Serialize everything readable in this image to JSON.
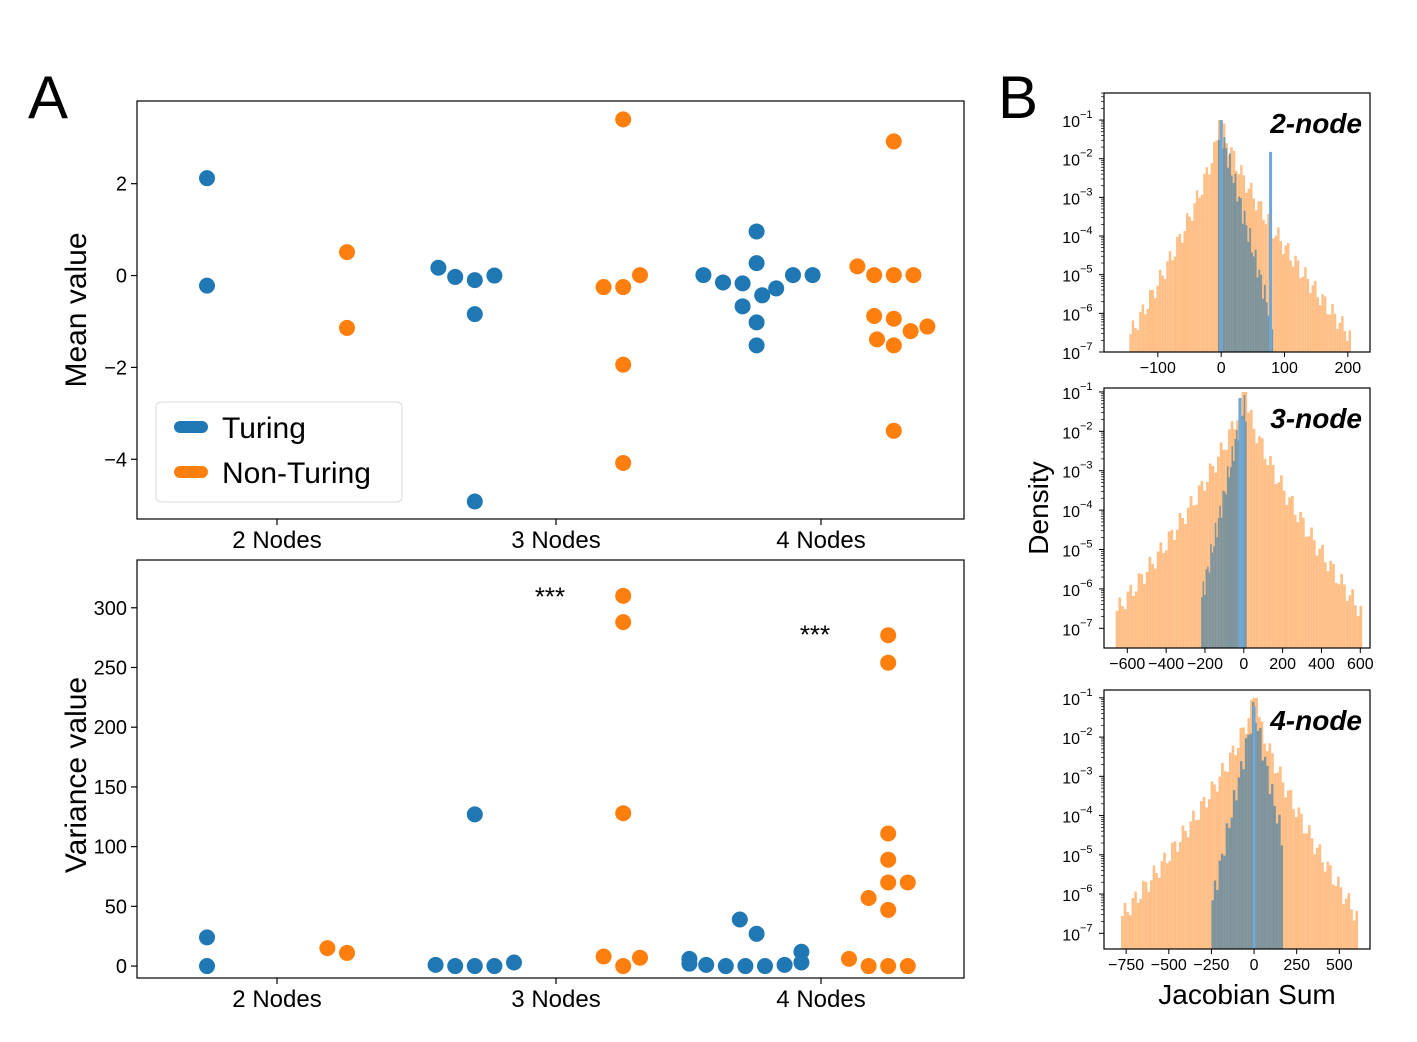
{
  "colors": {
    "turing": "#1f77b4",
    "non_turing": "#ff7f0e",
    "turing_hist": "#6fa8d6",
    "non_turing_hist": "#ffbf86",
    "overlap": "#6f8fa0"
  },
  "panel_letters": {
    "a": "A",
    "b": "B"
  },
  "chart_data": [
    {
      "type": "scatter",
      "panel": "A-top",
      "ylabel": "Mean value",
      "categories": [
        "2 Nodes",
        "3 Nodes",
        "4 Nodes"
      ],
      "ylim": [
        -5.3,
        3.8
      ],
      "yticks": [
        2,
        0,
        -2,
        -4
      ],
      "ytick_labels": [
        "2",
        "0",
        "−2",
        "−4"
      ],
      "grid": false,
      "legend": {
        "placement": "lower-left",
        "entries": [
          "Turing",
          "Non-Turing"
        ]
      },
      "series": [
        {
          "name": "Turing",
          "points": [
            {
              "cat": 0,
              "off": -0.25,
              "y": 2.12
            },
            {
              "cat": 0,
              "off": -0.25,
              "y": -0.22
            },
            {
              "cat": 1,
              "off": -0.42,
              "y": 0.17
            },
            {
              "cat": 1,
              "off": -0.36,
              "y": -0.03
            },
            {
              "cat": 1,
              "off": -0.29,
              "y": -0.1
            },
            {
              "cat": 1,
              "off": -0.22,
              "y": 0.0
            },
            {
              "cat": 1,
              "off": -0.29,
              "y": -0.84
            },
            {
              "cat": 1,
              "off": -0.29,
              "y": -4.92
            },
            {
              "cat": 2,
              "off": -0.42,
              "y": 0.01
            },
            {
              "cat": 2,
              "off": -0.35,
              "y": -0.15
            },
            {
              "cat": 2,
              "off": -0.28,
              "y": -0.17
            },
            {
              "cat": 2,
              "off": -0.23,
              "y": 0.96
            },
            {
              "cat": 2,
              "off": -0.23,
              "y": 0.27
            },
            {
              "cat": 2,
              "off": -0.21,
              "y": -0.43
            },
            {
              "cat": 2,
              "off": -0.16,
              "y": -0.28
            },
            {
              "cat": 2,
              "off": -0.1,
              "y": 0.01
            },
            {
              "cat": 2,
              "off": -0.03,
              "y": 0.01
            },
            {
              "cat": 2,
              "off": -0.28,
              "y": -0.67
            },
            {
              "cat": 2,
              "off": -0.23,
              "y": -1.02
            },
            {
              "cat": 2,
              "off": -0.23,
              "y": -1.52
            }
          ]
        },
        {
          "name": "Non-Turing",
          "points": [
            {
              "cat": 0,
              "off": 0.25,
              "y": 0.51
            },
            {
              "cat": 0,
              "off": 0.25,
              "y": -1.14
            },
            {
              "cat": 1,
              "off": 0.17,
              "y": -0.25
            },
            {
              "cat": 1,
              "off": 0.24,
              "y": -0.25
            },
            {
              "cat": 1,
              "off": 0.3,
              "y": 0.01
            },
            {
              "cat": 1,
              "off": 0.24,
              "y": 3.4
            },
            {
              "cat": 1,
              "off": 0.24,
              "y": -1.94
            },
            {
              "cat": 1,
              "off": 0.24,
              "y": -4.08
            },
            {
              "cat": 2,
              "off": 0.13,
              "y": 0.2
            },
            {
              "cat": 2,
              "off": 0.19,
              "y": 0.01
            },
            {
              "cat": 2,
              "off": 0.26,
              "y": 0.01
            },
            {
              "cat": 2,
              "off": 0.33,
              "y": 0.01
            },
            {
              "cat": 2,
              "off": 0.26,
              "y": 2.92
            },
            {
              "cat": 2,
              "off": 0.19,
              "y": -0.88
            },
            {
              "cat": 2,
              "off": 0.26,
              "y": -0.94
            },
            {
              "cat": 2,
              "off": 0.32,
              "y": -1.21
            },
            {
              "cat": 2,
              "off": 0.38,
              "y": -1.11
            },
            {
              "cat": 2,
              "off": 0.2,
              "y": -1.39
            },
            {
              "cat": 2,
              "off": 0.26,
              "y": -1.52
            },
            {
              "cat": 2,
              "off": 0.26,
              "y": -3.38
            }
          ]
        }
      ]
    },
    {
      "type": "scatter",
      "panel": "A-bottom",
      "ylabel": "Variance value",
      "categories": [
        "2 Nodes",
        "3 Nodes",
        "4 Nodes"
      ],
      "ylim": [
        -10,
        340
      ],
      "yticks": [
        300,
        250,
        200,
        150,
        100,
        50,
        0
      ],
      "ytick_labels": [
        "300",
        "250",
        "200",
        "150",
        "100",
        "50",
        "0"
      ],
      "grid": false,
      "annotations": [
        {
          "text": "***",
          "cat": 1,
          "off": 0.0,
          "y": 312
        },
        {
          "text": "***",
          "cat": 2,
          "off": 0.0,
          "y": 280
        }
      ],
      "series": [
        {
          "name": "Turing",
          "points": [
            {
              "cat": 0,
              "off": -0.25,
              "y": 24
            },
            {
              "cat": 0,
              "off": -0.25,
              "y": 0
            },
            {
              "cat": 1,
              "off": -0.43,
              "y": 1
            },
            {
              "cat": 1,
              "off": -0.36,
              "y": 0
            },
            {
              "cat": 1,
              "off": -0.29,
              "y": 0
            },
            {
              "cat": 1,
              "off": -0.22,
              "y": 0
            },
            {
              "cat": 1,
              "off": -0.15,
              "y": 3
            },
            {
              "cat": 1,
              "off": -0.29,
              "y": 127
            },
            {
              "cat": 2,
              "off": -0.47,
              "y": 6
            },
            {
              "cat": 2,
              "off": -0.47,
              "y": 2
            },
            {
              "cat": 2,
              "off": -0.41,
              "y": 1
            },
            {
              "cat": 2,
              "off": -0.34,
              "y": 0
            },
            {
              "cat": 2,
              "off": -0.27,
              "y": 0
            },
            {
              "cat": 2,
              "off": -0.2,
              "y": 0
            },
            {
              "cat": 2,
              "off": -0.13,
              "y": 1
            },
            {
              "cat": 2,
              "off": -0.07,
              "y": 3
            },
            {
              "cat": 2,
              "off": -0.07,
              "y": 12
            },
            {
              "cat": 2,
              "off": -0.29,
              "y": 39
            },
            {
              "cat": 2,
              "off": -0.23,
              "y": 27
            }
          ]
        },
        {
          "name": "Non-Turing",
          "points": [
            {
              "cat": 0,
              "off": 0.18,
              "y": 15
            },
            {
              "cat": 0,
              "off": 0.25,
              "y": 11
            },
            {
              "cat": 1,
              "off": 0.17,
              "y": 8
            },
            {
              "cat": 1,
              "off": 0.24,
              "y": 0
            },
            {
              "cat": 1,
              "off": 0.3,
              "y": 7
            },
            {
              "cat": 1,
              "off": 0.24,
              "y": 310
            },
            {
              "cat": 1,
              "off": 0.24,
              "y": 288
            },
            {
              "cat": 1,
              "off": 0.24,
              "y": 128
            },
            {
              "cat": 2,
              "off": 0.1,
              "y": 6
            },
            {
              "cat": 2,
              "off": 0.17,
              "y": 0
            },
            {
              "cat": 2,
              "off": 0.24,
              "y": 0
            },
            {
              "cat": 2,
              "off": 0.31,
              "y": 0
            },
            {
              "cat": 2,
              "off": 0.24,
              "y": 277
            },
            {
              "cat": 2,
              "off": 0.24,
              "y": 254
            },
            {
              "cat": 2,
              "off": 0.24,
              "y": 111
            },
            {
              "cat": 2,
              "off": 0.24,
              "y": 89
            },
            {
              "cat": 2,
              "off": 0.24,
              "y": 70
            },
            {
              "cat": 2,
              "off": 0.31,
              "y": 70
            },
            {
              "cat": 2,
              "off": 0.17,
              "y": 57
            },
            {
              "cat": 2,
              "off": 0.24,
              "y": 47
            }
          ]
        }
      ]
    },
    {
      "type": "bar",
      "subtype": "histogram",
      "panel": "B",
      "ylabel": "Density",
      "xlabel": "Jacobian Sum",
      "yscale": "log",
      "ytick_labels": [
        "10",
        "10",
        "10",
        "10",
        "10",
        "10",
        "10"
      ],
      "ytick_exponents": [
        "−1",
        "−2",
        "−3",
        "−4",
        "−5",
        "−6",
        "−7"
      ],
      "panels": [
        {
          "title": "2-node",
          "xlim": [
            -185,
            235
          ],
          "xticks": [
            -100,
            0,
            100,
            200
          ],
          "xtick_labels": [
            "−100",
            "0",
            "100",
            "200"
          ],
          "non_turing_extent": [
            -145,
            205
          ],
          "turing_extent": [
            -5,
            82
          ],
          "turing_spikes": [
            [
              78,
              0.015
            ],
            [
              0,
              0.1
            ]
          ],
          "ylim_log": [
            -7,
            -0.3
          ]
        },
        {
          "title": "3-node",
          "xlim": [
            -720,
            650
          ],
          "xticks": [
            -600,
            -400,
            -200,
            0,
            200,
            400,
            600
          ],
          "xtick_labels": [
            "−600",
            "−400",
            "−200",
            "0",
            "200",
            "400",
            "600"
          ],
          "non_turing_extent": [
            -660,
            610
          ],
          "turing_extent": [
            -220,
            15
          ],
          "turing_spikes": [
            [
              -20,
              0.07
            ],
            [
              -5,
              0.02
            ]
          ],
          "ylim_log": [
            -7.5,
            -0.9
          ]
        },
        {
          "title": "4-node",
          "xlim": [
            -880,
            680
          ],
          "xticks": [
            -750,
            -500,
            -250,
            0,
            250,
            500
          ],
          "xtick_labels": [
            "−750",
            "−500",
            "−250",
            "0",
            "250",
            "500"
          ],
          "non_turing_extent": [
            -780,
            610
          ],
          "turing_extent": [
            -250,
            170
          ],
          "turing_spikes": [
            [
              0,
              0.06
            ]
          ],
          "ylim_log": [
            -7.4,
            -0.8
          ]
        }
      ]
    }
  ]
}
